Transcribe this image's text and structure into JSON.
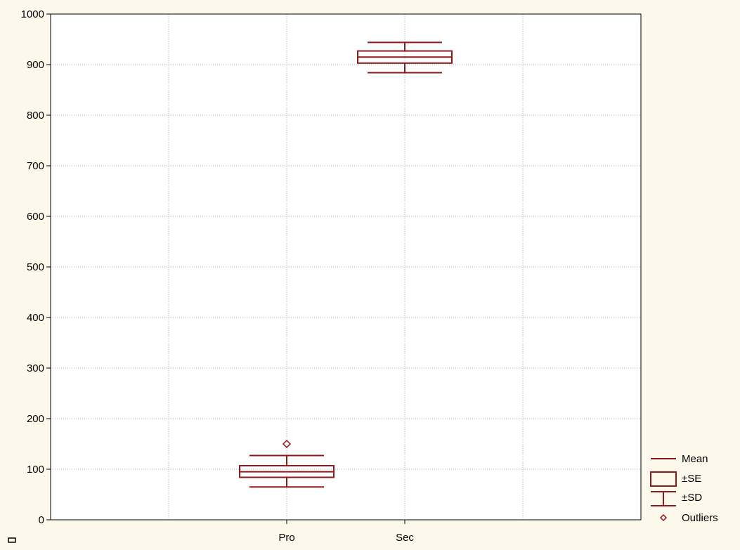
{
  "chart_data": {
    "type": "box",
    "title": "",
    "xlabel": "",
    "ylabel": "",
    "ylim": [
      0,
      1000
    ],
    "yticks": [
      0,
      100,
      200,
      300,
      400,
      500,
      600,
      700,
      800,
      900,
      1000
    ],
    "grid": true,
    "legend_position": "bottom-right",
    "categories": [
      "Pro",
      "Sec"
    ],
    "boxes": [
      {
        "category": "Pro",
        "mean": 95,
        "se_low": 84,
        "se_high": 107,
        "sd_low": 65,
        "sd_high": 127,
        "outliers": [
          150
        ]
      },
      {
        "category": "Sec",
        "mean": 915,
        "se_low": 903,
        "se_high": 927,
        "sd_low": 884,
        "sd_high": 944,
        "outliers": []
      }
    ],
    "legend": [
      {
        "key": "mean",
        "label": "Mean"
      },
      {
        "key": "se",
        "label": "±SE"
      },
      {
        "key": "sd",
        "label": "±SD"
      },
      {
        "key": "outliers",
        "label": "Outliers"
      }
    ],
    "colors": {
      "series": "#8b1a1a",
      "grid": "#a8a8a8",
      "axis": "#000000",
      "background": "#fdf8ec",
      "plot_background": "#ffffff"
    }
  }
}
